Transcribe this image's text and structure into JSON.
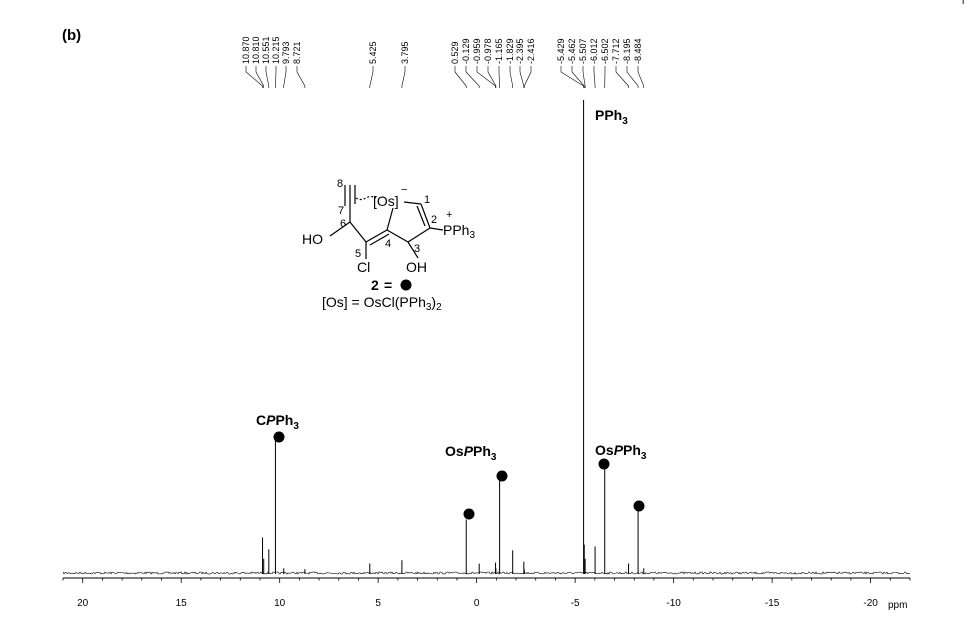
{
  "panel_label": "(b)",
  "corner_mark": "r",
  "structure": {
    "compound_label": "2",
    "equals": "=",
    "os_definition_prefix": "[Os] = OsCl(PPh",
    "os_definition_sub": "3",
    "os_definition_suffix": ")",
    "os_definition_sub2": "2",
    "os_label": "[Os]",
    "minus_sign": "−",
    "plus_sign": "+",
    "pph3_label": "PPh",
    "pph3_sub": "3",
    "ho_label": "HO",
    "oh_label": "OH",
    "cl_label": "Cl",
    "atom_numbers": [
      "1",
      "2",
      "3",
      "4",
      "5",
      "6",
      "7",
      "8"
    ]
  },
  "annotations": [
    {
      "id": "cpph3",
      "prefix": "C",
      "italic": "P",
      "suffix": "Ph",
      "sub": "3",
      "ppm": 10.215,
      "marker": true
    },
    {
      "id": "ospph3-left",
      "prefix": "Os",
      "italic": "P",
      "suffix": "Ph",
      "sub": "3",
      "ppm": -1.165,
      "marker": true
    },
    {
      "id": "pph3-free",
      "prefix": "PPh",
      "italic": "",
      "suffix": "",
      "sub": "3",
      "ppm": -5.429,
      "marker": false
    },
    {
      "id": "ospph3-right",
      "prefix": "Os",
      "italic": "P",
      "suffix": "Ph",
      "sub": "3",
      "ppm": -6.502,
      "marker": true
    }
  ],
  "extra_markers_ppm": [
    0.529,
    -8.195
  ],
  "chart_data": {
    "type": "line",
    "title": "",
    "xlabel": "ppm",
    "ylabel": "",
    "xlim": [
      21,
      -22
    ],
    "x_reversed": true,
    "x_ticks": [
      20,
      15,
      10,
      5,
      0,
      -5,
      -10,
      -15,
      -20
    ],
    "x_tick_labels": [
      "20",
      "15",
      "10",
      "5",
      "0",
      "-5",
      "-10",
      "-15",
      "-20"
    ],
    "grid": false,
    "legend": "none",
    "peak_labels": [
      "10.870",
      "10.810",
      "10.551",
      "10.215",
      "9.793",
      "8.721",
      "5.425",
      "3.795",
      "0.529",
      "-0.129",
      "-0.959",
      "-0.978",
      "-1.165",
      "-1.829",
      "-2.395",
      "-2.416",
      "-5.429",
      "-5.462",
      "-5.507",
      "-6.012",
      "-6.502",
      "-7.712",
      "-8.195",
      "-8.484"
    ],
    "peaks": [
      {
        "ppm": 10.87,
        "intensity": 0.075
      },
      {
        "ppm": 10.81,
        "intensity": 0.03
      },
      {
        "ppm": 10.551,
        "intensity": 0.05
      },
      {
        "ppm": 10.215,
        "intensity": 0.29
      },
      {
        "ppm": 9.793,
        "intensity": 0.01
      },
      {
        "ppm": 8.721,
        "intensity": 0.008
      },
      {
        "ppm": 5.425,
        "intensity": 0.02
      },
      {
        "ppm": 3.795,
        "intensity": 0.027
      },
      {
        "ppm": 0.529,
        "intensity": 0.113
      },
      {
        "ppm": -0.129,
        "intensity": 0.02
      },
      {
        "ppm": -0.959,
        "intensity": 0.022
      },
      {
        "ppm": -0.978,
        "intensity": 0.01
      },
      {
        "ppm": -1.165,
        "intensity": 0.21
      },
      {
        "ppm": -1.829,
        "intensity": 0.048
      },
      {
        "ppm": -2.395,
        "intensity": 0.024
      },
      {
        "ppm": -2.416,
        "intensity": 0.008
      },
      {
        "ppm": -5.429,
        "intensity": 1.0
      },
      {
        "ppm": -5.462,
        "intensity": 0.06
      },
      {
        "ppm": -5.507,
        "intensity": 0.03
      },
      {
        "ppm": -6.012,
        "intensity": 0.056
      },
      {
        "ppm": -6.502,
        "intensity": 0.233
      },
      {
        "ppm": -7.712,
        "intensity": 0.02
      },
      {
        "ppm": -8.195,
        "intensity": 0.135
      },
      {
        "ppm": -8.484,
        "intensity": 0.01
      }
    ]
  }
}
